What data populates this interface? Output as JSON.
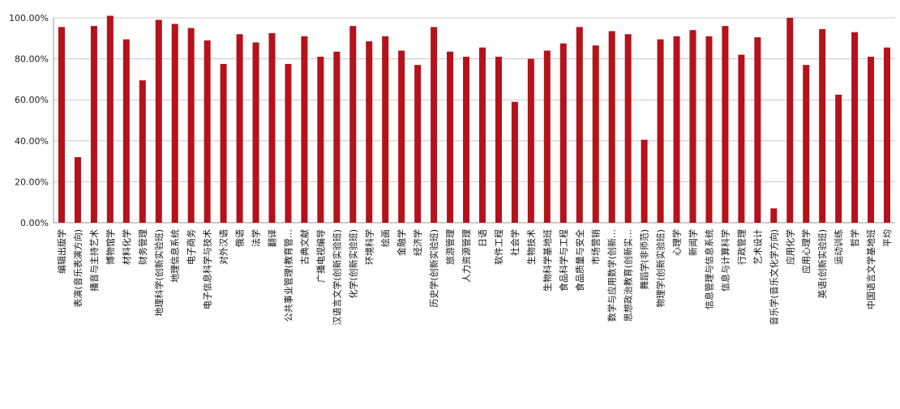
{
  "chart_data": {
    "type": "bar",
    "title": "",
    "xlabel": "",
    "ylabel": "",
    "ylim": [
      0,
      100
    ],
    "yticks": [
      "0.00%",
      "20.00%",
      "40.00%",
      "60.00%",
      "80.00%",
      "100.00%"
    ],
    "grid": true,
    "legend": "none",
    "bar_color": "#b5121b",
    "categories": [
      "编辑出版学",
      "表演(音乐表演方向)",
      "播音与主持艺术",
      "博物馆学",
      "材料化学",
      "财务管理",
      "地理科学(创新实验班)",
      "地理信息系统",
      "电子商务",
      "电子信息科学与技术",
      "对外汉语",
      "俄语",
      "法学",
      "翻译",
      "公共事业管理(教育管…",
      "古典文献",
      "广播电视编导",
      "汉语言文学(创新实验班)",
      "化学(创新实验班)",
      "环境科学",
      "绘画",
      "金融学",
      "经济学",
      "历史学(创新实验班)",
      "旅游管理",
      "人力资源管理",
      "日语",
      "软件工程",
      "社会学",
      "生物技术",
      "生物科学基地班",
      "食品科学与工程",
      "食品质量与安全",
      "市场营销",
      "数学与应用数学(创新…",
      "思想政治教育(创新实…",
      "舞蹈学(非师范)",
      "物理学(创新实验班)",
      "心理学",
      "新闻学",
      "信息管理与信息系统",
      "信息与计算科学",
      "行政管理",
      "艺术设计",
      "音乐学(音乐文化学方向)",
      "应用化学",
      "应用心理学",
      "英语(创新实验班)",
      "运动训练",
      "哲学",
      "中国语言文学基地班",
      "平均"
    ],
    "values": [
      95.5,
      32,
      96,
      101,
      89.5,
      69.5,
      99,
      97,
      95,
      89,
      77.5,
      92,
      88,
      92.5,
      77.5,
      91,
      81,
      83.5,
      96,
      88.5,
      91,
      84,
      77,
      95.5,
      83.5,
      81,
      85.5,
      81,
      59,
      80,
      84,
      87.5,
      95.5,
      86.5,
      93.5,
      92,
      40.5,
      89.5,
      91,
      94,
      91,
      96,
      82,
      90.5,
      7,
      100,
      77,
      94.5,
      62.5,
      93,
      81,
      85.5
    ]
  }
}
